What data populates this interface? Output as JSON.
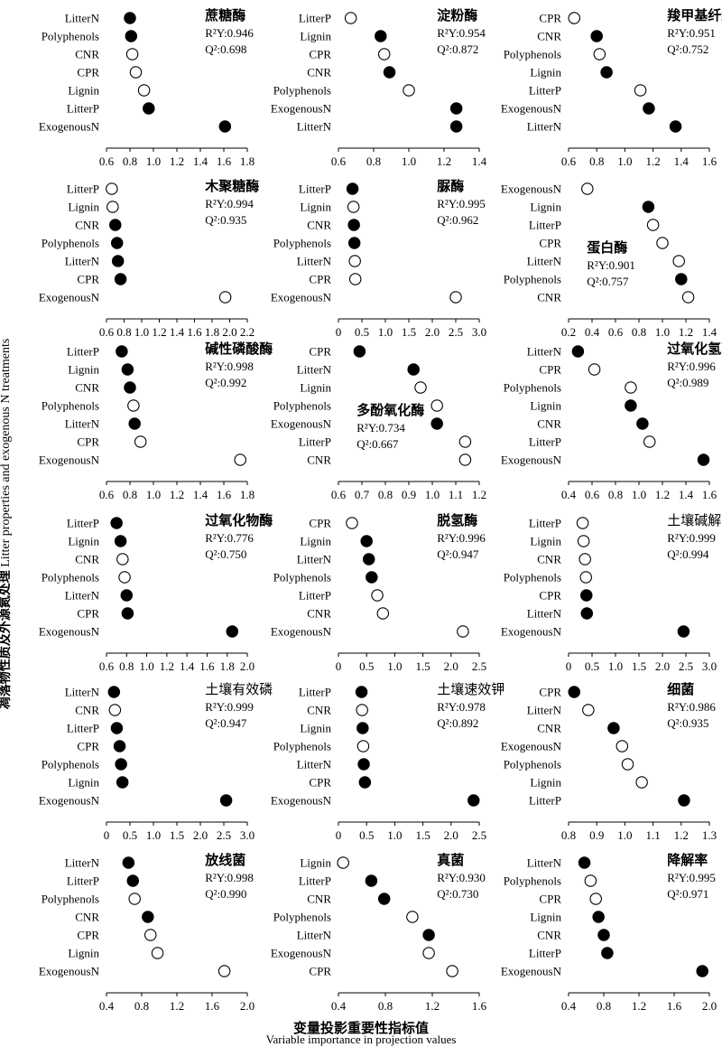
{
  "figure": {
    "ylabel_cn": "凋落物性质及外源氮处理",
    "ylabel_en": "Litter properties and exogenous N treatments",
    "xlabel_cn": "变量投影重要性指标值",
    "xlabel_en": "Variable importance in projection values",
    "marker_legend": {
      "filled": "#000000",
      "open": "#ffffff"
    }
  },
  "chart_data": [
    {
      "type": "scatter",
      "title": "蔗糖酶",
      "r2y": "R²Y:0.946",
      "q2": "Q²:0.698",
      "xlim": [
        0.6,
        1.8
      ],
      "ticks": [
        "0.6",
        "0.8",
        "1.0",
        "1.2",
        "1.4",
        "1.6",
        "1.8"
      ],
      "points": [
        {
          "label": "LitterN",
          "value": 0.8,
          "filled": true
        },
        {
          "label": "Polyphenols",
          "value": 0.81,
          "filled": true
        },
        {
          "label": "CNR",
          "value": 0.82,
          "filled": false
        },
        {
          "label": "CPR",
          "value": 0.85,
          "filled": false
        },
        {
          "label": "Lignin",
          "value": 0.92,
          "filled": false
        },
        {
          "label": "LitterP",
          "value": 0.96,
          "filled": true
        },
        {
          "label": "ExogenousN",
          "value": 1.61,
          "filled": true
        }
      ]
    },
    {
      "type": "scatter",
      "title": "淀粉酶",
      "r2y": "R²Y:0.954",
      "q2": "Q²:0.872",
      "xlim": [
        0.6,
        1.4
      ],
      "ticks": [
        "0.6",
        "0.8",
        "1.0",
        "1.2",
        "1.4"
      ],
      "points": [
        {
          "label": "LitterP",
          "value": 0.67,
          "filled": false
        },
        {
          "label": "Lignin",
          "value": 0.84,
          "filled": true
        },
        {
          "label": "CPR",
          "value": 0.86,
          "filled": false
        },
        {
          "label": "CNR",
          "value": 0.89,
          "filled": true
        },
        {
          "label": "Polyphenols",
          "value": 1.0,
          "filled": false
        },
        {
          "label": "ExogenousN",
          "value": 1.27,
          "filled": true
        },
        {
          "label": "LitterN",
          "value": 1.27,
          "filled": true
        }
      ]
    },
    {
      "type": "scatter",
      "title": "羧甲基纤维素酶",
      "r2y": "R²Y:0.951",
      "q2": "Q²:0.752",
      "xlim": [
        0.6,
        1.6
      ],
      "ticks": [
        "0.6",
        "0.8",
        "1.0",
        "1.2",
        "1.4",
        "1.6"
      ],
      "points": [
        {
          "label": "CPR",
          "value": 0.64,
          "filled": false
        },
        {
          "label": "CNR",
          "value": 0.8,
          "filled": true
        },
        {
          "label": "Polyphenols",
          "value": 0.82,
          "filled": false
        },
        {
          "label": "Lignin",
          "value": 0.87,
          "filled": true
        },
        {
          "label": "LitterP",
          "value": 1.11,
          "filled": false
        },
        {
          "label": "ExogenousN",
          "value": 1.17,
          "filled": true
        },
        {
          "label": "LitterN",
          "value": 1.36,
          "filled": true
        }
      ]
    },
    {
      "type": "scatter",
      "title": "木聚糖酶",
      "r2y": "R²Y:0.994",
      "q2": "Q²:0.935",
      "xlim": [
        0.6,
        2.2
      ],
      "ticks": [
        "0.6",
        "0.8",
        "1.0",
        "1.2",
        "1.4",
        "1.6",
        "1.8",
        "2.0",
        "2.2"
      ],
      "points": [
        {
          "label": "LitterP",
          "value": 0.66,
          "filled": false
        },
        {
          "label": "Lignin",
          "value": 0.67,
          "filled": false
        },
        {
          "label": "CNR",
          "value": 0.7,
          "filled": true
        },
        {
          "label": "Polyphenols",
          "value": 0.72,
          "filled": true
        },
        {
          "label": "LitterN",
          "value": 0.73,
          "filled": true
        },
        {
          "label": "CPR",
          "value": 0.76,
          "filled": true
        },
        {
          "label": "ExogenousN",
          "value": 1.95,
          "filled": false
        }
      ]
    },
    {
      "type": "scatter",
      "title": "脲酶",
      "r2y": "R²Y:0.995",
      "q2": "Q²:0.962",
      "xlim": [
        0,
        3.0
      ],
      "ticks": [
        "0",
        "0.5",
        "1.0",
        "1.5",
        "2.0",
        "2.5",
        "3.0"
      ],
      "points": [
        {
          "label": "LitterP",
          "value": 0.3,
          "filled": true
        },
        {
          "label": "Lignin",
          "value": 0.32,
          "filled": false
        },
        {
          "label": "CNR",
          "value": 0.33,
          "filled": true
        },
        {
          "label": "Polyphenols",
          "value": 0.34,
          "filled": true
        },
        {
          "label": "LitterN",
          "value": 0.35,
          "filled": false
        },
        {
          "label": "CPR",
          "value": 0.36,
          "filled": false
        },
        {
          "label": "ExogenousN",
          "value": 2.5,
          "filled": false
        }
      ]
    },
    {
      "type": "scatter",
      "title": "蛋白酶",
      "r2y": "R²Y:0.901",
      "q2": "Q²:0.757",
      "xlim": [
        0.2,
        1.4
      ],
      "ticks": [
        "0.2",
        "0.4",
        "0.6",
        "0.8",
        "1.0",
        "1.2",
        "1.4"
      ],
      "stats_low": true,
      "points": [
        {
          "label": "ExogenousN",
          "value": 0.36,
          "filled": false
        },
        {
          "label": "Lignin",
          "value": 0.88,
          "filled": true
        },
        {
          "label": "LitterP",
          "value": 0.92,
          "filled": false
        },
        {
          "label": "CPR",
          "value": 1.0,
          "filled": false
        },
        {
          "label": "LitterN",
          "value": 1.14,
          "filled": false
        },
        {
          "label": "Polyphenols",
          "value": 1.16,
          "filled": true
        },
        {
          "label": "CNR",
          "value": 1.22,
          "filled": false
        }
      ]
    },
    {
      "type": "scatter",
      "title": "碱性磷酸酶",
      "r2y": "R²Y:0.998",
      "q2": "Q²:0.992",
      "xlim": [
        0.6,
        1.8
      ],
      "ticks": [
        "0.6",
        "0.8",
        "1.0",
        "1.2",
        "1.4",
        "1.6",
        "1.8"
      ],
      "points": [
        {
          "label": "LitterP",
          "value": 0.73,
          "filled": true
        },
        {
          "label": "Lignin",
          "value": 0.78,
          "filled": true
        },
        {
          "label": "CNR",
          "value": 0.8,
          "filled": true
        },
        {
          "label": "Polyphenols",
          "value": 0.83,
          "filled": false
        },
        {
          "label": "LitterN",
          "value": 0.84,
          "filled": true
        },
        {
          "label": "CPR",
          "value": 0.89,
          "filled": false
        },
        {
          "label": "ExogenousN",
          "value": 1.74,
          "filled": false
        }
      ]
    },
    {
      "type": "scatter",
      "title": "多酚氧化酶",
      "r2y": "R²Y:0.734",
      "q2": "Q²:0.667",
      "xlim": [
        0.6,
        1.2
      ],
      "ticks": [
        "0.6",
        "0.7",
        "0.8",
        "0.9",
        "1.0",
        "1.1",
        "1.2"
      ],
      "stats_low": true,
      "points": [
        {
          "label": "CPR",
          "value": 0.69,
          "filled": true
        },
        {
          "label": "LitterN",
          "value": 0.92,
          "filled": true
        },
        {
          "label": "Lignin",
          "value": 0.95,
          "filled": false
        },
        {
          "label": "Polyphenols",
          "value": 1.02,
          "filled": false
        },
        {
          "label": "ExogenousN",
          "value": 1.02,
          "filled": true
        },
        {
          "label": "LitterP",
          "value": 1.14,
          "filled": false
        },
        {
          "label": "CNR",
          "value": 1.14,
          "filled": false
        }
      ]
    },
    {
      "type": "scatter",
      "title": "过氧化氢酶",
      "r2y": "R²Y:0.996",
      "q2": "Q²:0.989",
      "xlim": [
        0.4,
        1.6
      ],
      "ticks": [
        "0.4",
        "0.6",
        "0.8",
        "1.0",
        "1.2",
        "1.4",
        "1.6"
      ],
      "points": [
        {
          "label": "LitterN",
          "value": 0.48,
          "filled": true
        },
        {
          "label": "CPR",
          "value": 0.62,
          "filled": false
        },
        {
          "label": "Polyphenols",
          "value": 0.93,
          "filled": false
        },
        {
          "label": "Lignin",
          "value": 0.93,
          "filled": true
        },
        {
          "label": "CNR",
          "value": 1.03,
          "filled": true
        },
        {
          "label": "LitterP",
          "value": 1.09,
          "filled": false
        },
        {
          "label": "ExogenousN",
          "value": 1.55,
          "filled": true
        }
      ]
    },
    {
      "type": "scatter",
      "title": "过氧化物酶",
      "r2y": "R²Y:0.776",
      "q2": "Q²:0.750",
      "xlim": [
        0.6,
        2.0
      ],
      "ticks": [
        "0.6",
        "0.8",
        "1.0",
        "1.2",
        "1.4",
        "1.6",
        "1.8",
        "2.0"
      ],
      "points": [
        {
          "label": "LitterP",
          "value": 0.7,
          "filled": true
        },
        {
          "label": "Lignin",
          "value": 0.74,
          "filled": true
        },
        {
          "label": "CNR",
          "value": 0.76,
          "filled": false
        },
        {
          "label": "Polyphenols",
          "value": 0.78,
          "filled": false
        },
        {
          "label": "LitterN",
          "value": 0.8,
          "filled": true
        },
        {
          "label": "CPR",
          "value": 0.81,
          "filled": true
        },
        {
          "label": "ExogenousN",
          "value": 1.85,
          "filled": true
        }
      ]
    },
    {
      "type": "scatter",
      "title": "脱氢酶",
      "r2y": "R²Y:0.996",
      "q2": "Q²:0.947",
      "xlim": [
        0,
        2.5
      ],
      "ticks": [
        "0",
        "0.5",
        "1.0",
        "1.5",
        "2.0",
        "2.5"
      ],
      "points": [
        {
          "label": "CPR",
          "value": 0.24,
          "filled": false
        },
        {
          "label": "Lignin",
          "value": 0.5,
          "filled": true
        },
        {
          "label": "LitterN",
          "value": 0.54,
          "filled": true
        },
        {
          "label": "Polyphenols",
          "value": 0.59,
          "filled": true
        },
        {
          "label": "LitterP",
          "value": 0.69,
          "filled": false
        },
        {
          "label": "CNR",
          "value": 0.79,
          "filled": false
        },
        {
          "label": "ExogenousN",
          "value": 2.21,
          "filled": false
        }
      ]
    },
    {
      "type": "scatter",
      "title": "土壤碱解氮",
      "r2y": "R²Y:0.999",
      "q2": "Q²:0.994",
      "xlim": [
        0,
        3.0
      ],
      "ticks": [
        "0",
        "0.5",
        "1.0",
        "1.5",
        "2.0",
        "2.5",
        "3.0"
      ],
      "title_light": true,
      "points": [
        {
          "label": "LitterP",
          "value": 0.3,
          "filled": false
        },
        {
          "label": "Lignin",
          "value": 0.32,
          "filled": false
        },
        {
          "label": "CNR",
          "value": 0.35,
          "filled": false
        },
        {
          "label": "Polyphenols",
          "value": 0.37,
          "filled": false
        },
        {
          "label": "CPR",
          "value": 0.38,
          "filled": true
        },
        {
          "label": "LitterN",
          "value": 0.39,
          "filled": true
        },
        {
          "label": "ExogenousN",
          "value": 2.45,
          "filled": true
        }
      ]
    },
    {
      "type": "scatter",
      "title": "土壤有效磷",
      "r2y": "R²Y:0.999",
      "q2": "Q²:0.947",
      "xlim": [
        0,
        3.0
      ],
      "ticks": [
        "0",
        "0.5",
        "1.0",
        "1.5",
        "2.0",
        "2.5",
        "3.0"
      ],
      "title_light": true,
      "points": [
        {
          "label": "LitterN",
          "value": 0.16,
          "filled": true
        },
        {
          "label": "CNR",
          "value": 0.18,
          "filled": false
        },
        {
          "label": "LitterP",
          "value": 0.22,
          "filled": true
        },
        {
          "label": "CPR",
          "value": 0.28,
          "filled": true
        },
        {
          "label": "Polyphenols",
          "value": 0.31,
          "filled": true
        },
        {
          "label": "Lignin",
          "value": 0.34,
          "filled": true
        },
        {
          "label": "ExogenousN",
          "value": 2.55,
          "filled": true
        }
      ]
    },
    {
      "type": "scatter",
      "title": "土壤速效钾",
      "r2y": "R²Y:0.978",
      "q2": "Q²:0.892",
      "xlim": [
        0,
        2.5
      ],
      "ticks": [
        "0",
        "0.5",
        "1.0",
        "1.5",
        "2.0",
        "2.5"
      ],
      "title_light": true,
      "points": [
        {
          "label": "LitterP",
          "value": 0.41,
          "filled": true
        },
        {
          "label": "CNR",
          "value": 0.42,
          "filled": false
        },
        {
          "label": "Lignin",
          "value": 0.43,
          "filled": true
        },
        {
          "label": "Polyphenols",
          "value": 0.44,
          "filled": false
        },
        {
          "label": "LitterN",
          "value": 0.45,
          "filled": true
        },
        {
          "label": "CPR",
          "value": 0.47,
          "filled": true
        },
        {
          "label": "ExogenousN",
          "value": 2.4,
          "filled": true
        }
      ]
    },
    {
      "type": "scatter",
      "title": "细菌",
      "r2y": "R²Y:0.986",
      "q2": "Q²:0.935",
      "xlim": [
        0.8,
        1.3
      ],
      "ticks": [
        "0.8",
        "0.9",
        "1.0",
        "1.1",
        "1.2",
        "1.3"
      ],
      "points": [
        {
          "label": "CPR",
          "value": 0.82,
          "filled": true
        },
        {
          "label": "LitterN",
          "value": 0.87,
          "filled": false
        },
        {
          "label": "CNR",
          "value": 0.96,
          "filled": true
        },
        {
          "label": "ExogenousN",
          "value": 0.99,
          "filled": false
        },
        {
          "label": "Polyphenols",
          "value": 1.01,
          "filled": false
        },
        {
          "label": "Lignin",
          "value": 1.06,
          "filled": false
        },
        {
          "label": "LitterP",
          "value": 1.21,
          "filled": true
        }
      ]
    },
    {
      "type": "scatter",
      "title": "放线菌",
      "r2y": "R²Y:0.998",
      "q2": "Q²:0.990",
      "xlim": [
        0.4,
        2.0
      ],
      "ticks": [
        "0.4",
        "0.8",
        "1.2",
        "1.6",
        "2.0"
      ],
      "points": [
        {
          "label": "LitterN",
          "value": 0.65,
          "filled": true
        },
        {
          "label": "LitterP",
          "value": 0.7,
          "filled": true
        },
        {
          "label": "Polyphenols",
          "value": 0.72,
          "filled": false
        },
        {
          "label": "CNR",
          "value": 0.87,
          "filled": true
        },
        {
          "label": "CPR",
          "value": 0.9,
          "filled": false
        },
        {
          "label": "Lignin",
          "value": 0.98,
          "filled": false
        },
        {
          "label": "ExogenousN",
          "value": 1.74,
          "filled": false
        }
      ]
    },
    {
      "type": "scatter",
      "title": "真菌",
      "r2y": "R²Y:0.930",
      "q2": "Q²:0.730",
      "xlim": [
        0.4,
        1.6
      ],
      "ticks": [
        "0.4",
        "0.8",
        "1.2",
        "1.6"
      ],
      "points": [
        {
          "label": "Lignin",
          "value": 0.44,
          "filled": false
        },
        {
          "label": "LitterP",
          "value": 0.68,
          "filled": true
        },
        {
          "label": "CNR",
          "value": 0.79,
          "filled": true
        },
        {
          "label": "Polyphenols",
          "value": 1.03,
          "filled": false
        },
        {
          "label": "LitterN",
          "value": 1.17,
          "filled": true
        },
        {
          "label": "ExogenousN",
          "value": 1.17,
          "filled": false
        },
        {
          "label": "CPR",
          "value": 1.37,
          "filled": false
        }
      ]
    },
    {
      "type": "scatter",
      "title": "降解率",
      "r2y": "R²Y:0.995",
      "q2": "Q²:0.971",
      "xlim": [
        0.4,
        2.0
      ],
      "ticks": [
        "0.4",
        "0.8",
        "1.2",
        "1.6",
        "2.0"
      ],
      "points": [
        {
          "label": "LitterN",
          "value": 0.58,
          "filled": true
        },
        {
          "label": "Polyphenols",
          "value": 0.65,
          "filled": false
        },
        {
          "label": "CPR",
          "value": 0.71,
          "filled": false
        },
        {
          "label": "Lignin",
          "value": 0.74,
          "filled": true
        },
        {
          "label": "CNR",
          "value": 0.8,
          "filled": true
        },
        {
          "label": "LitterP",
          "value": 0.84,
          "filled": true
        },
        {
          "label": "ExogenousN",
          "value": 1.92,
          "filled": true
        }
      ]
    }
  ]
}
